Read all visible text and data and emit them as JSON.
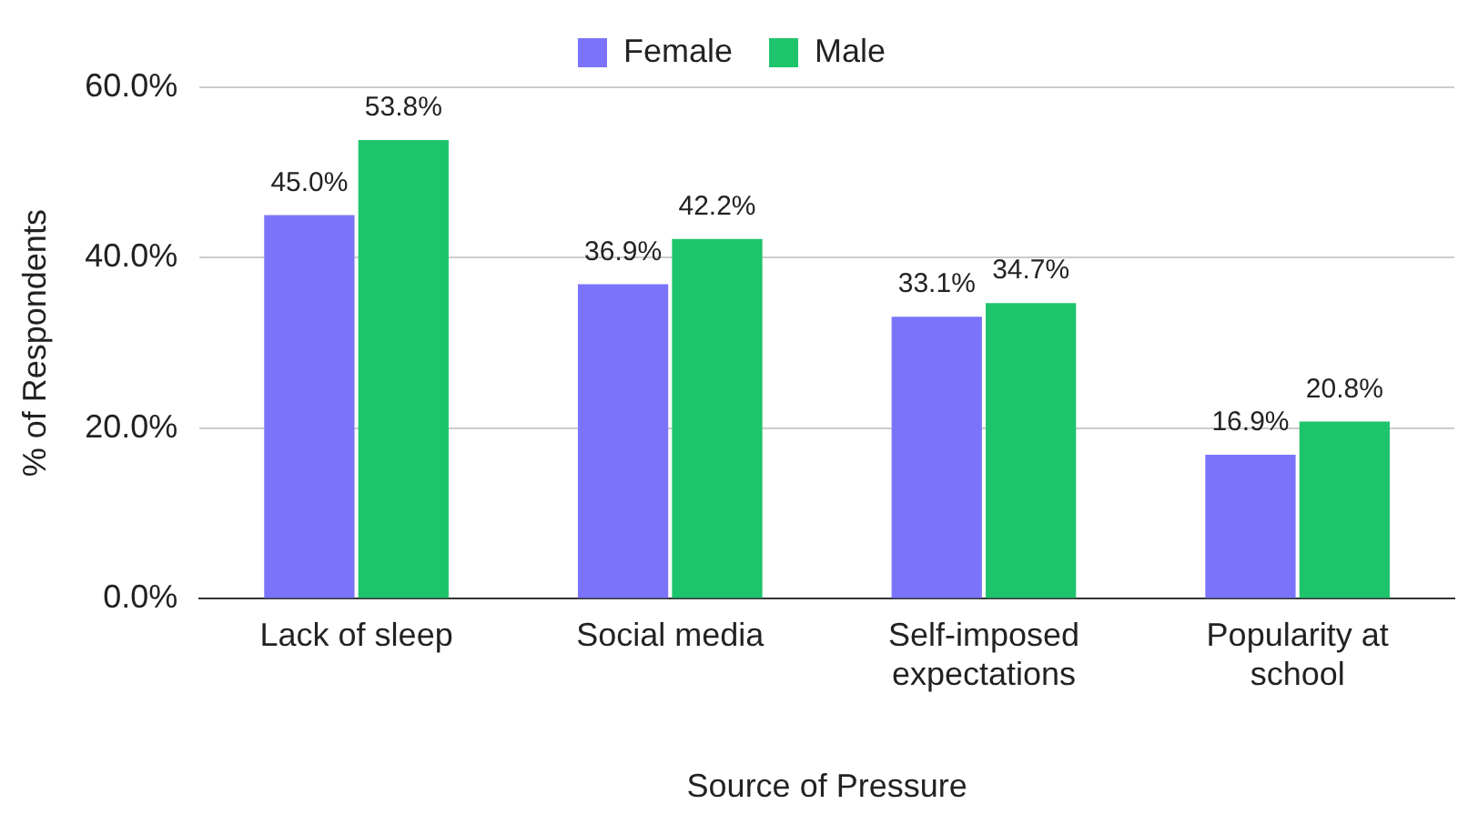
{
  "chart_data": {
    "type": "bar",
    "xlabel": "Source of Pressure",
    "ylabel": "% of Respondents",
    "categories": [
      "Lack of sleep",
      "Social media",
      "Self-imposed expectations",
      "Popularity at school"
    ],
    "series": [
      {
        "name": "Female",
        "color": "#7b74fb",
        "values": [
          45.0,
          36.9,
          33.1,
          16.9
        ],
        "value_labels": [
          "45.0%",
          "36.9%",
          "33.1%",
          "16.9%"
        ]
      },
      {
        "name": "Male",
        "color": "#1ec46b",
        "values": [
          53.8,
          42.2,
          34.7,
          20.8
        ],
        "value_labels": [
          "53.8%",
          "42.2%",
          "34.7%",
          "20.8%"
        ]
      }
    ],
    "ylim": [
      0,
      60
    ],
    "yticks": [
      {
        "value": 0,
        "label": "0.0%"
      },
      {
        "value": 20,
        "label": "20.0%"
      },
      {
        "value": 40,
        "label": "40.0%"
      },
      {
        "value": 60,
        "label": "60.0%"
      }
    ],
    "grid": "y",
    "legend": "top"
  }
}
